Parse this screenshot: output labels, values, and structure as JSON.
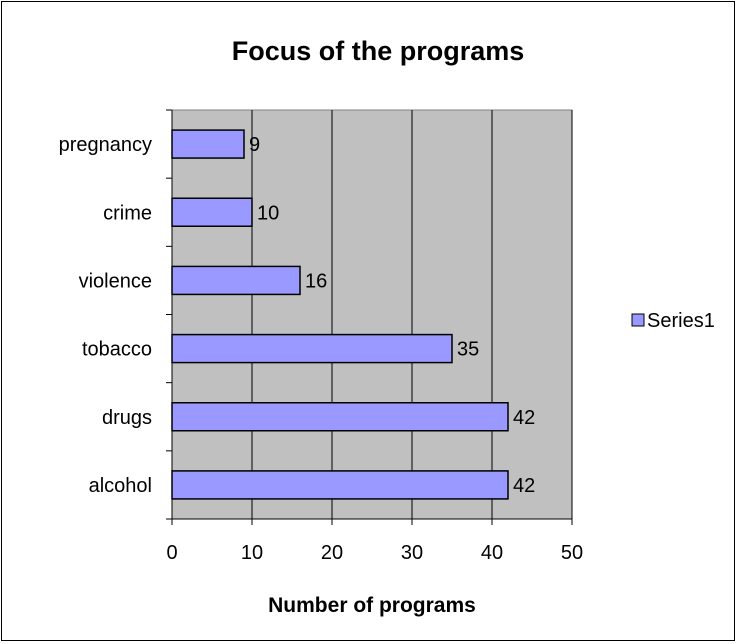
{
  "chart_data": {
    "type": "bar",
    "orientation": "horizontal",
    "title": "Focus of the programs",
    "xlabel": "Number of programs",
    "ylabel": "",
    "categories": [
      "alcohol",
      "drugs",
      "tobacco",
      "violence",
      "crime",
      "pregnancy"
    ],
    "series": [
      {
        "name": "Series1",
        "values": [
          42,
          42,
          35,
          16,
          10,
          9
        ]
      }
    ],
    "xlim": [
      0,
      50
    ],
    "x_ticks": [
      "0",
      "10",
      "20",
      "30",
      "40",
      "50"
    ],
    "data_labels": [
      "42",
      "42",
      "35",
      "16",
      "10",
      "9"
    ],
    "grid": "vertical",
    "legend_position": "right",
    "colors": {
      "bar_fill": "#9999ff",
      "bar_stroke": "#000000",
      "plot_background": "#c0c0c0",
      "gridline": "#000000"
    }
  }
}
